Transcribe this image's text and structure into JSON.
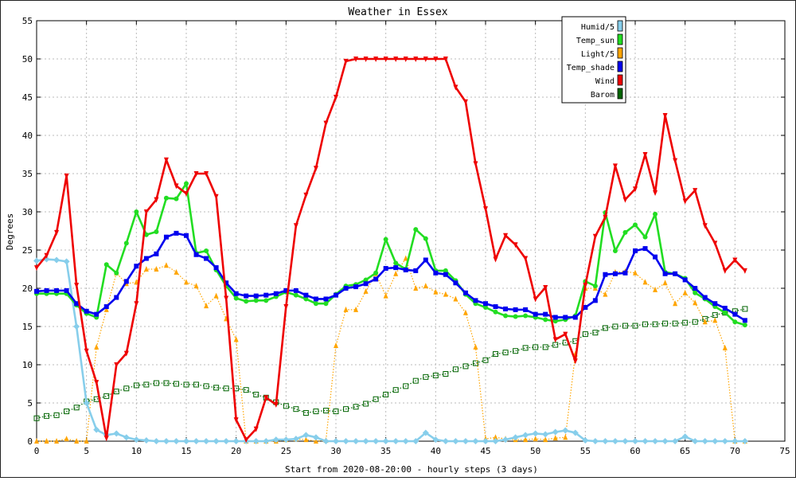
{
  "chart_data": {
    "type": "line",
    "title": "Weather in Essex",
    "xlabel": "Start from 2020-08-20:00 - hourly steps (3 days)",
    "ylabel": "Degrees",
    "xlim": [
      0,
      75
    ],
    "ylim": [
      0,
      55
    ],
    "x_ticks": [
      0,
      5,
      10,
      15,
      20,
      25,
      30,
      35,
      40,
      45,
      50,
      55,
      60,
      65,
      70,
      75
    ],
    "y_ticks": [
      0,
      5,
      10,
      15,
      20,
      25,
      30,
      35,
      40,
      45,
      50,
      55
    ],
    "grid": true,
    "legend_position": "top-right",
    "series": [
      {
        "name": "Humid/5",
        "color": "#87ceeb",
        "marker": "diamond",
        "style": "solid",
        "values": [
          23.6,
          23.8,
          23.7,
          23.5,
          15.0,
          5.0,
          1.5,
          0.8,
          1.0,
          0.5,
          0.2,
          0.1,
          0,
          0,
          0,
          0,
          0,
          0,
          0,
          0,
          0,
          0,
          0,
          0,
          0.2,
          0.2,
          0.3,
          0.8,
          0.5,
          0,
          0,
          0,
          0,
          0,
          0,
          0,
          0,
          0,
          0,
          1.1,
          0.2,
          0,
          0,
          0,
          0,
          0,
          0,
          0.2,
          0.5,
          0.8,
          1.0,
          0.9,
          1.2,
          1.4,
          1.1,
          0.1,
          0,
          0,
          0,
          0,
          0,
          0,
          0,
          0,
          0,
          0.6,
          0,
          0,
          0,
          0,
          0,
          0
        ]
      },
      {
        "name": "Temp_sun",
        "color": "#22dd22",
        "marker": "circle",
        "style": "solid",
        "values": [
          19.3,
          19.3,
          19.3,
          19.3,
          17.8,
          16.7,
          16.2,
          23.1,
          22.0,
          25.9,
          30.0,
          27.0,
          27.4,
          31.8,
          31.7,
          33.7,
          24.6,
          24.9,
          22.4,
          20.3,
          18.7,
          18.3,
          18.4,
          18.4,
          18.9,
          19.5,
          19.1,
          18.6,
          18.0,
          18.0,
          19.2,
          20.3,
          20.5,
          21.1,
          22.0,
          26.4,
          23.3,
          22.5,
          27.7,
          26.5,
          22.3,
          22.3,
          21.0,
          19.2,
          18.0,
          17.5,
          16.9,
          16.4,
          16.3,
          16.4,
          16.2,
          15.9,
          15.7,
          15.9,
          16.4,
          20.9,
          20.3,
          29.9,
          24.9,
          27.3,
          28.3,
          26.7,
          29.7,
          22.1,
          21.9,
          21.3,
          19.4,
          18.6,
          17.6,
          16.8,
          15.6,
          15.2
        ]
      },
      {
        "name": "Light/5",
        "color": "#ffa500",
        "marker": "triangle-up",
        "style": "dotted",
        "values": [
          0,
          0,
          0,
          0.3,
          0,
          0,
          12.3,
          17.2,
          22.0,
          20.6,
          20.8,
          22.5,
          22.5,
          23.0,
          22.1,
          20.8,
          20.3,
          17.7,
          19.0,
          16.0,
          13.3,
          0,
          0,
          0,
          0,
          0.2,
          0.3,
          0.2,
          0,
          0.1,
          12.5,
          17.2,
          17.2,
          19.6,
          21.9,
          19.0,
          21.9,
          23.9,
          20.0,
          20.3,
          19.5,
          19.2,
          18.6,
          16.8,
          12.3,
          0.3,
          0.5,
          0.3,
          0.2,
          0.2,
          0.3,
          0.2,
          0.4,
          0.5,
          11.4,
          20.0,
          20.0,
          19.2,
          22.1,
          22.2,
          22.0,
          20.8,
          19.8,
          20.7,
          18.0,
          19.4,
          18.1,
          15.6,
          15.8,
          12.2,
          0,
          0
        ]
      },
      {
        "name": "Temp_shade",
        "color": "#0000ee",
        "marker": "square",
        "style": "solid",
        "values": [
          19.6,
          19.7,
          19.7,
          19.7,
          18.0,
          17.0,
          16.6,
          17.6,
          18.8,
          20.9,
          22.9,
          23.9,
          24.5,
          26.7,
          27.2,
          26.9,
          24.4,
          23.9,
          22.7,
          20.7,
          19.3,
          19.0,
          19.0,
          19.1,
          19.3,
          19.7,
          19.7,
          19.1,
          18.6,
          18.6,
          19.1,
          20.0,
          20.2,
          20.6,
          21.2,
          22.6,
          22.7,
          22.4,
          22.3,
          23.7,
          22.0,
          21.8,
          20.7,
          19.4,
          18.4,
          18.0,
          17.6,
          17.3,
          17.2,
          17.2,
          16.6,
          16.6,
          16.2,
          16.2,
          16.2,
          17.5,
          18.4,
          21.8,
          21.9,
          22.0,
          24.9,
          25.2,
          24.1,
          21.9,
          21.9,
          21.1,
          20.0,
          18.8,
          18.0,
          17.4,
          16.6,
          15.8
        ]
      },
      {
        "name": "Wind",
        "color": "#ee0000",
        "marker": "triangle-down",
        "style": "solid",
        "values": [
          22.7,
          24.3,
          27.3,
          34.7,
          20.4,
          11.8,
          7.7,
          0.4,
          10.0,
          11.5,
          18.0,
          30.0,
          31.6,
          36.8,
          33.4,
          32.4,
          35.0,
          35.0,
          32.0,
          18.7,
          2.8,
          0.2,
          1.6,
          5.7,
          4.8,
          17.6,
          28.2,
          32.2,
          35.7,
          41.6,
          45.0,
          49.7,
          50,
          50,
          50,
          50,
          50,
          50,
          50,
          50,
          50,
          50,
          46.3,
          44.4,
          36.3,
          30.4,
          23.8,
          26.9,
          25.7,
          23.9,
          18.6,
          20.1,
          13.3,
          14.0,
          10.5,
          20.4,
          26.8,
          29.3,
          36.0,
          31.6,
          33.0,
          37.5,
          32.5,
          42.6,
          36.7,
          31.4,
          32.8,
          28.2,
          25.9,
          22.3,
          23.7,
          22.3
        ]
      },
      {
        "name": "Barom",
        "color": "#006400",
        "marker": "square-open",
        "style": "dotted",
        "values": [
          3.0,
          3.3,
          3.4,
          3.9,
          4.4,
          5.2,
          5.5,
          5.9,
          6.5,
          6.9,
          7.3,
          7.4,
          7.6,
          7.6,
          7.5,
          7.4,
          7.4,
          7.2,
          7.0,
          6.9,
          6.9,
          6.7,
          6.1,
          5.7,
          5.1,
          4.6,
          4.2,
          3.7,
          3.9,
          4.0,
          3.9,
          4.2,
          4.5,
          4.9,
          5.5,
          6.1,
          6.7,
          7.2,
          7.9,
          8.4,
          8.6,
          8.8,
          9.4,
          9.8,
          10.2,
          10.6,
          11.4,
          11.6,
          11.8,
          12.2,
          12.3,
          12.3,
          12.6,
          12.9,
          13.1,
          14.0,
          14.2,
          14.8,
          15.0,
          15.1,
          15.1,
          15.3,
          15.3,
          15.4,
          15.4,
          15.5,
          15.6,
          16.0,
          16.5,
          16.8,
          17.0,
          17.3
        ]
      }
    ]
  }
}
